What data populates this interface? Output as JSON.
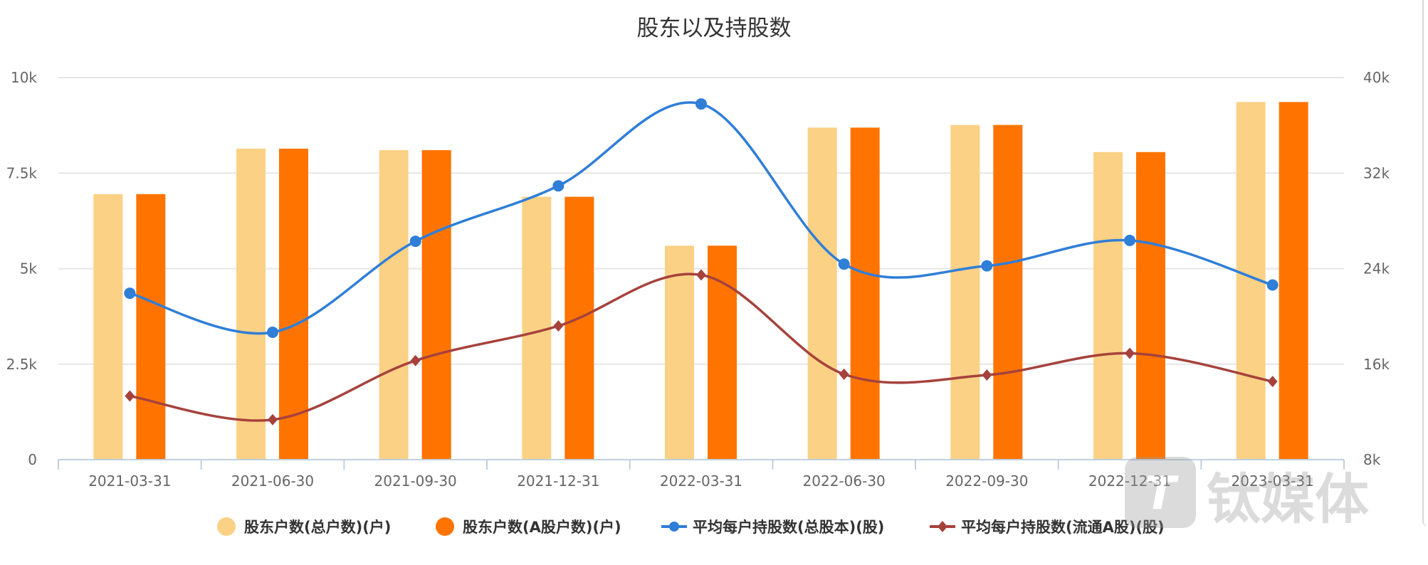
{
  "chart_data": {
    "type": "bar+line",
    "title": "股东以及持股数",
    "categories": [
      "2021-03-31",
      "2021-06-30",
      "2021-09-30",
      "2021-12-31",
      "2022-03-31",
      "2022-06-30",
      "2022-09-30",
      "2022-12-31",
      "2023-03-31"
    ],
    "y_left": {
      "ticks": [
        "0",
        "2.5k",
        "5k",
        "7.5k",
        "10k"
      ],
      "range": [
        0,
        10000
      ]
    },
    "y_right": {
      "ticks": [
        "8k",
        "16k",
        "24k",
        "32k",
        "40k"
      ],
      "range": [
        8000,
        40000
      ]
    },
    "grid": true,
    "legend_position": "bottom",
    "series": [
      {
        "name": "股东户数(总户数)(户)",
        "type": "bar",
        "axis": "left",
        "color": "#fad185",
        "values": [
          6950,
          8140,
          8100,
          6880,
          5600,
          8690,
          8760,
          8050,
          9360
        ]
      },
      {
        "name": "股东户数(A股户数)(户)",
        "type": "bar",
        "axis": "left",
        "color": "#ff7400",
        "values": [
          6950,
          8140,
          8100,
          6880,
          5600,
          8690,
          8760,
          8050,
          9360
        ]
      },
      {
        "name": "平均每户持股数(总股本)(股)",
        "type": "line",
        "axis": "right",
        "marker": "circle",
        "color": "#2f7ed8",
        "values": [
          21940,
          18670,
          26290,
          30930,
          37790,
          24380,
          24230,
          26360,
          22630
        ]
      },
      {
        "name": "平均每户持股数(流通A股)(股)",
        "type": "line",
        "axis": "right",
        "marker": "diamond",
        "color": "#a6423c",
        "values": [
          13330,
          11350,
          16300,
          19200,
          23470,
          15160,
          15090,
          16910,
          14550
        ]
      }
    ]
  },
  "watermark": "钛媒体"
}
